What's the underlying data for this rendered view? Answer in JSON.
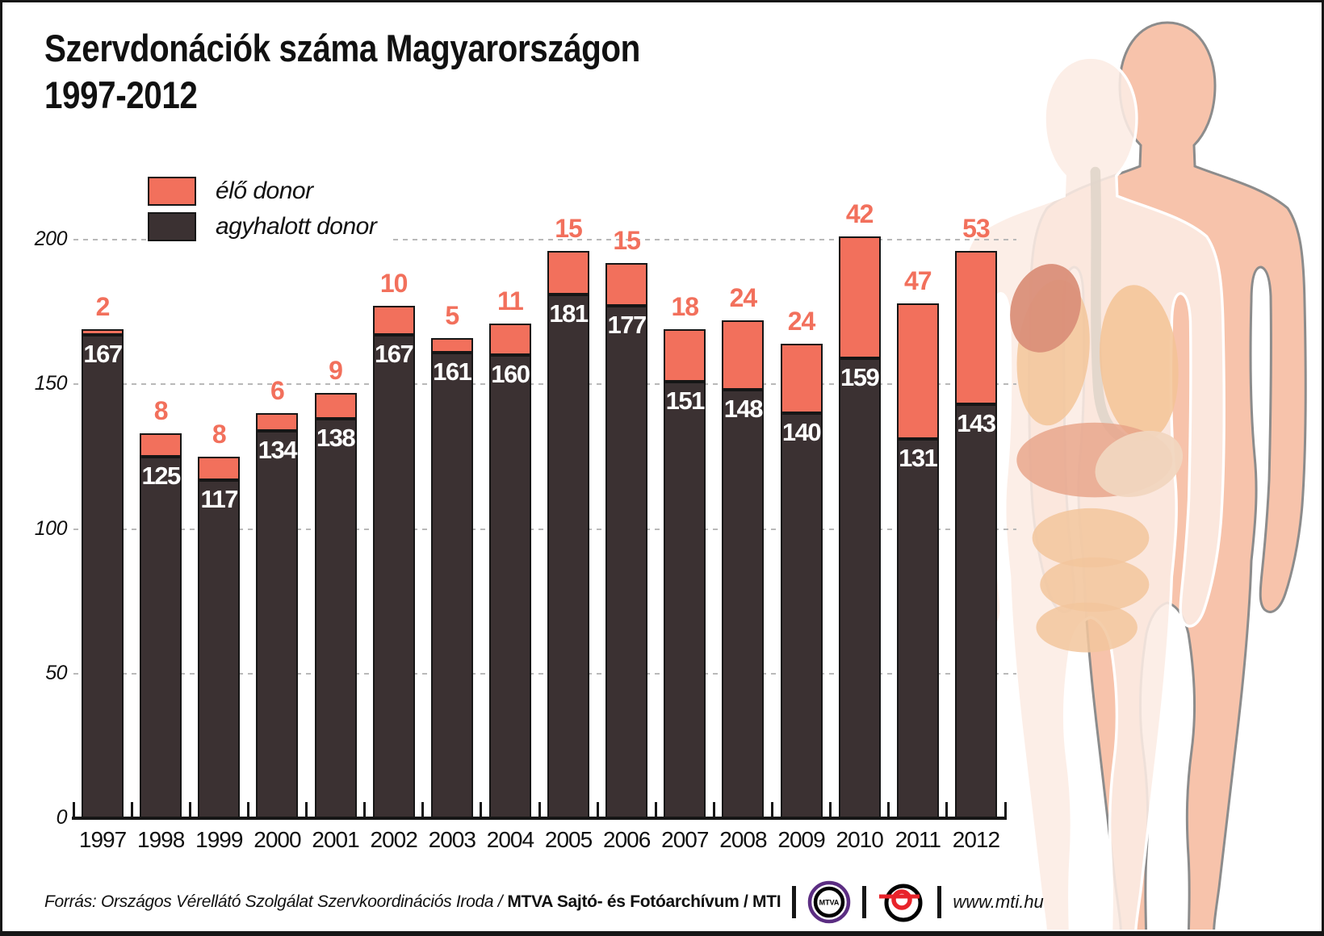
{
  "title": {
    "line1": "Szervdonációk száma Magyarországon",
    "line2": "1997-2012"
  },
  "legend": {
    "living_label": "élő donor",
    "deceased_label": "agyhalott donor"
  },
  "colors": {
    "living": "#f2705c",
    "deceased": "#3b3132",
    "grid": "#b9b9b9",
    "axis": "#161616",
    "value_on_dark": "#ffffff"
  },
  "chart_data": {
    "type": "bar",
    "stacked": true,
    "title": "Szervdonációk száma Magyarországon 1997-2012",
    "categories": [
      "1997",
      "1998",
      "1999",
      "2000",
      "2001",
      "2002",
      "2003",
      "2004",
      "2005",
      "2006",
      "2007",
      "2008",
      "2009",
      "2010",
      "2011",
      "2012"
    ],
    "series": [
      {
        "name": "agyhalott donor",
        "color": "#3b3132",
        "values": [
          167,
          125,
          117,
          134,
          138,
          167,
          161,
          160,
          181,
          177,
          151,
          148,
          140,
          159,
          131,
          143
        ]
      },
      {
        "name": "élő donor",
        "color": "#f2705c",
        "values": [
          2,
          8,
          8,
          6,
          9,
          10,
          5,
          11,
          15,
          15,
          18,
          24,
          24,
          42,
          47,
          53
        ]
      }
    ],
    "xlabel": "",
    "ylabel": "",
    "ylim": [
      0,
      200
    ],
    "yticks": [
      0,
      50,
      100,
      150,
      200
    ],
    "grid": "horizontal-dashed",
    "legend_position": "top-left"
  },
  "footer": {
    "source_prefix": "Forrás: Országos Vérellátó Szolgálat Szervkoordinációs Iroda /",
    "source_bold": "MTVA Sajtó- és Fotóarchívum / MTI",
    "mtva_logo_text": "MTVA",
    "url": "www.mti.hu"
  }
}
